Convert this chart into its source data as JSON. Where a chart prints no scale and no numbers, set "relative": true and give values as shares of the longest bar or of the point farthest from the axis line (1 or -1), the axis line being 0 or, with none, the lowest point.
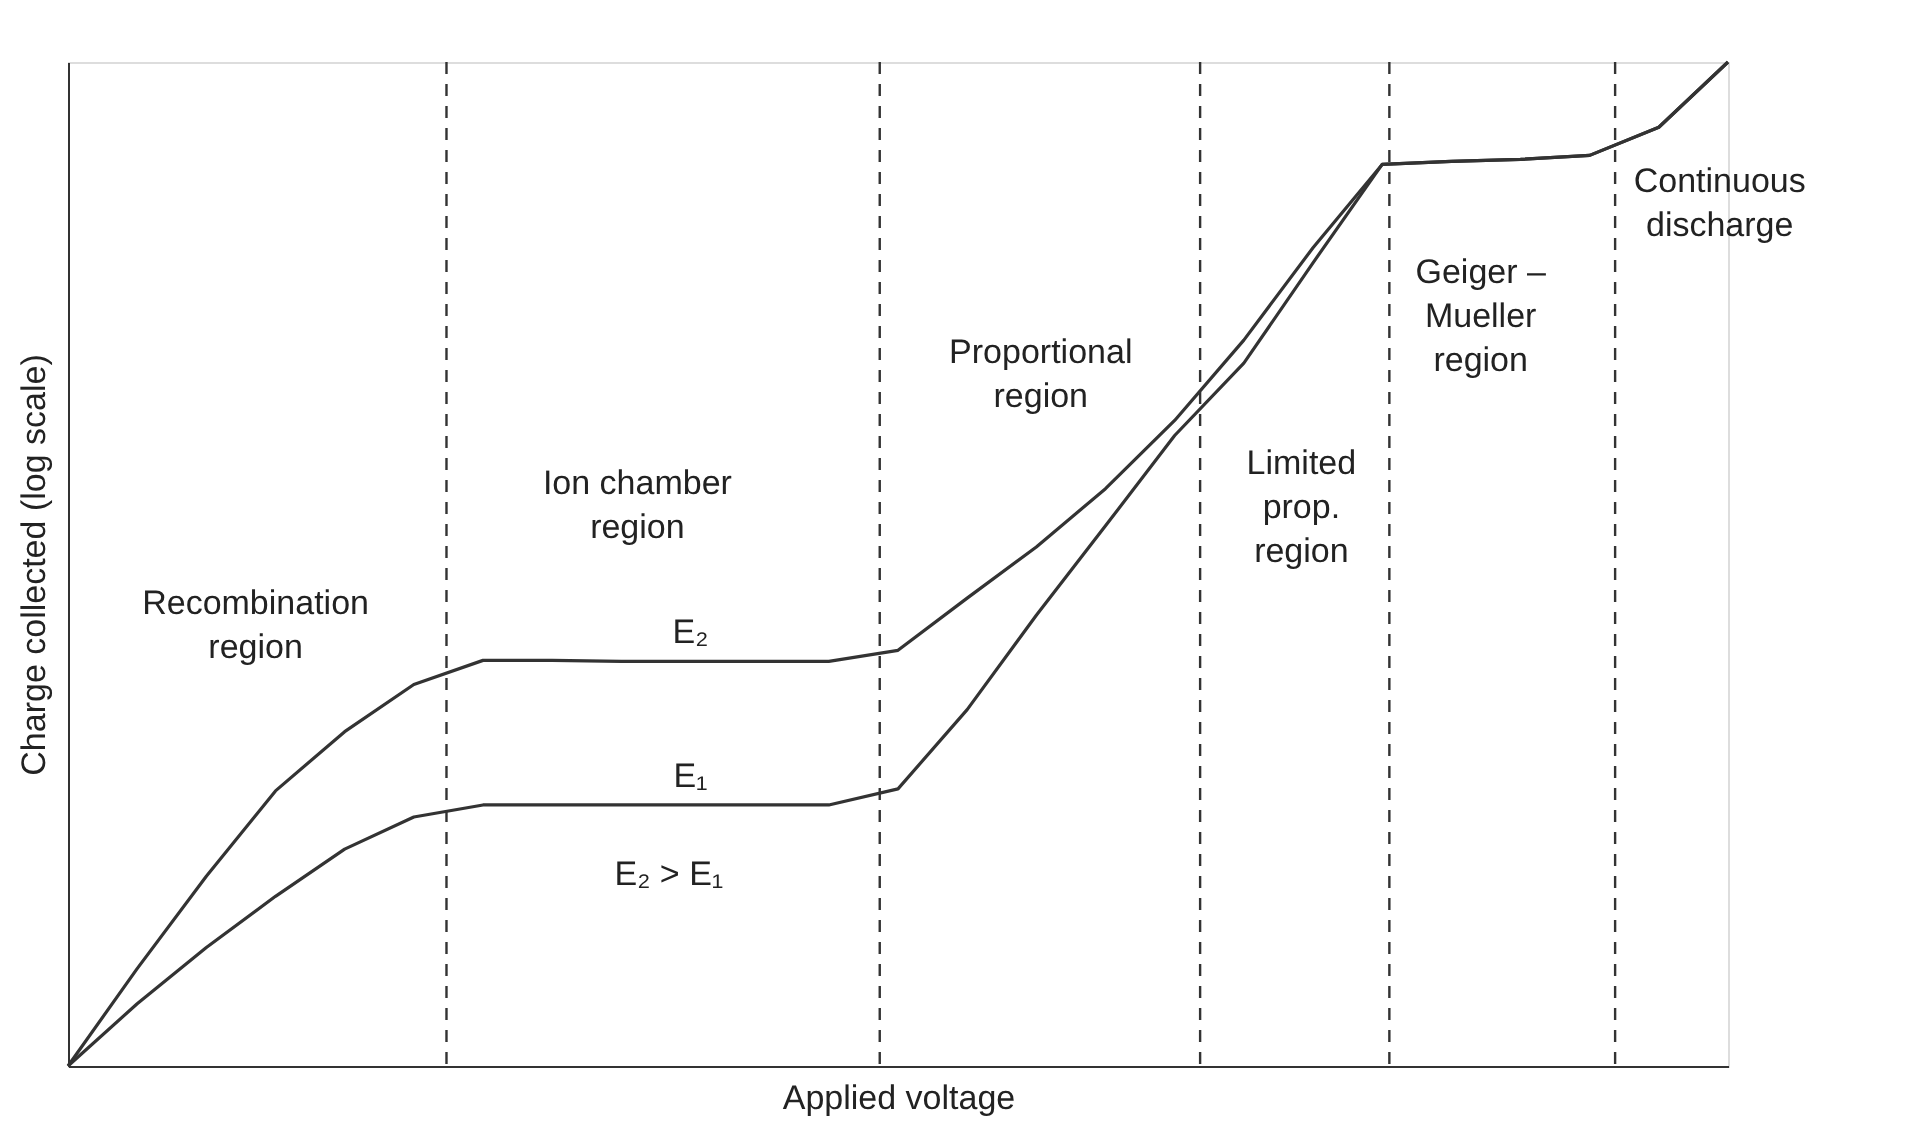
{
  "chart_data": {
    "type": "line",
    "relative": true,
    "xlabel": "Applied voltage",
    "ylabel": "Charge collected (log scale)",
    "categories": [
      null,
      null,
      null,
      null,
      null,
      null,
      null,
      null,
      null,
      null,
      null,
      null,
      null,
      null,
      null,
      null,
      null,
      null,
      null,
      null,
      null,
      null,
      null,
      null,
      null
    ],
    "grid": false,
    "line_style": "solid",
    "series": [
      {
        "name": "E₂",
        "color": "#333333",
        "values": [
          0,
          0.097,
          0.189,
          0.274,
          0.333,
          0.38,
          0.404,
          0.404,
          0.403,
          0.403,
          0.403,
          0.403,
          0.414,
          0.466,
          0.517,
          0.575,
          0.643,
          0.723,
          0.815,
          0.898,
          0.901,
          0.903,
          0.907,
          0.935,
          1.0
        ]
      },
      {
        "name": "E₁",
        "color": "#333333",
        "values": [
          0,
          0.062,
          0.118,
          0.169,
          0.216,
          0.248,
          0.26,
          0.26,
          0.26,
          0.26,
          0.26,
          0.26,
          0.276,
          0.355,
          0.449,
          0.538,
          0.628,
          0.7,
          0.8,
          0.898,
          0.901,
          0.903,
          0.907,
          0.935,
          1.0
        ]
      }
    ],
    "annotations": [
      "Recombination\nregion",
      "Ion chamber\nregion",
      "E₂ > E₁",
      "Proportional\nregion",
      "Limited\nprop.\nregion",
      "Geiger –\nMueller\nregion",
      "Continuous\ndischarge"
    ]
  }
}
